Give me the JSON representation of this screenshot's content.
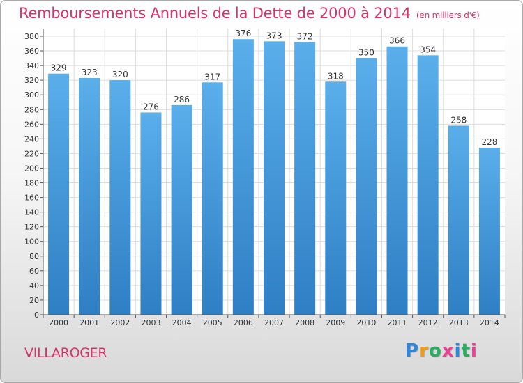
{
  "header": {
    "title": "Remboursements Annuels de la Dette de 2000 à 2014",
    "subtitle": "(en milliers d'€)"
  },
  "footer": {
    "commune": "VILLAROGER",
    "brand_letters": [
      "P",
      "r",
      "o",
      "x",
      "i",
      "t",
      "i"
    ]
  },
  "colors": {
    "accent": "#d6336c",
    "bar_top": "#5aaeea",
    "bar_bottom": "#2e7fc4",
    "grid": "#dcdcdc"
  },
  "chart_data": {
    "type": "bar",
    "title": "Remboursements Annuels de la Dette de 2000 à 2014",
    "subtitle": "(en milliers d'€)",
    "xlabel": "",
    "ylabel": "",
    "categories": [
      "2000",
      "2001",
      "2002",
      "2003",
      "2004",
      "2005",
      "2006",
      "2007",
      "2008",
      "2009",
      "2010",
      "2011",
      "2012",
      "2013",
      "2014"
    ],
    "values": [
      329,
      323,
      320,
      276,
      286,
      317,
      376,
      373,
      372,
      318,
      350,
      366,
      354,
      258,
      228
    ],
    "ylim": [
      0,
      380
    ],
    "ytick_step": 20,
    "grid": true
  }
}
